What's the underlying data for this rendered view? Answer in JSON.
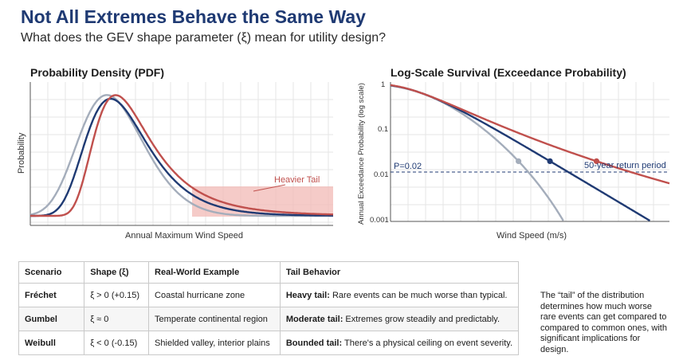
{
  "header": {
    "title": "Not All Extremes Behave the Same Way",
    "subtitle": "What does the GEV shape parameter (ξ) mean for utility design?"
  },
  "chart_data": [
    {
      "type": "line",
      "title": "Probability Density (PDF)",
      "xlabel": "Annual Maximum Wind Speed",
      "ylabel": "Probability",
      "grid": true,
      "annotations": [
        "Heavier Tail"
      ],
      "series": [
        {
          "color": "#a4adbb",
          "shape": -0.15
        },
        {
          "color": "#1f3a73",
          "shape": 0
        },
        {
          "color": "#c0504d",
          "shape": 0.15
        }
      ]
    },
    {
      "type": "line",
      "title": "Log-Scale Survival (Exceedance Probability)",
      "xlabel": "Wind Speed (m/s)",
      "ylabel": "Annual Exceedance Probability (log scale)",
      "yscale": "log",
      "ylim": [
        0.001,
        1
      ],
      "yticks": [
        "1",
        "0.1",
        "0.01",
        "0.001"
      ],
      "grid": true,
      "reference_line": {
        "y": 0.02,
        "label_left": "P=0.02",
        "label_right": "50-year return period"
      },
      "series": [
        {
          "color": "#a4adbb",
          "shape": -0.15
        },
        {
          "color": "#1f3a73",
          "shape": 0
        },
        {
          "color": "#c0504d",
          "shape": 0.15
        }
      ]
    }
  ],
  "table": {
    "headers": [
      "Scenario",
      "Shape (ξ)",
      "Real-World Example",
      "Tail Behavior"
    ],
    "rows": [
      {
        "scenario": "Fréchet",
        "shape": "ξ > 0 (+0.15)",
        "example": "Coastal hurricane zone",
        "tail_bold": "Heavy tail:",
        "tail_text": " Rare events can be much worse than typical."
      },
      {
        "scenario": "Gumbel",
        "shape": "ξ ≈ 0",
        "example": "Temperate continental region",
        "tail_bold": "Moderate tail:",
        "tail_text": " Extremes grow steadily and predictably."
      },
      {
        "scenario": "Weibull",
        "shape": "ξ < 0 (-0.15)",
        "example": "Shielded valley, interior plains",
        "tail_bold": "Bounded tail:",
        "tail_text": " There's a physical ceiling on event severity."
      }
    ]
  },
  "note": "The “tail” of the distribution determines how much worse rare events can get compared to compared to common ones, with significant implications for design."
}
